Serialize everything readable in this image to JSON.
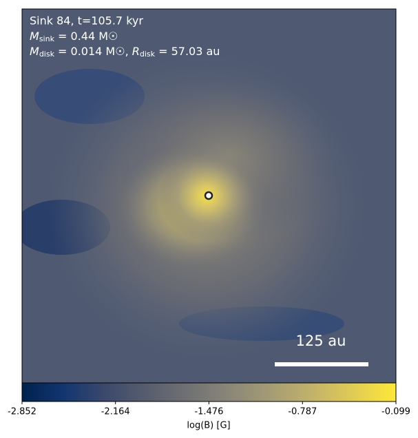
{
  "chart_data": {
    "type": "heatmap",
    "annotations": [
      {
        "text": "Sink 84, t=105.7 kyr"
      },
      {
        "symbol": "M",
        "subscript": "sink",
        "text": " = 0.44 M☉"
      },
      {
        "symbol": "M",
        "subscript": "disk",
        "text": " = 0.014 M☉, ",
        "symbol2": "R",
        "subscript2": "disk",
        "text2": " = 57.03 au"
      }
    ],
    "scale_bar_label": "125 au",
    "colormap": "cividis",
    "clim": [
      -2.852,
      -0.099
    ],
    "cticks": [
      -2.852,
      -2.164,
      -1.476,
      -0.787,
      -0.099
    ],
    "colorbar_label": "log(B) [G]"
  }
}
